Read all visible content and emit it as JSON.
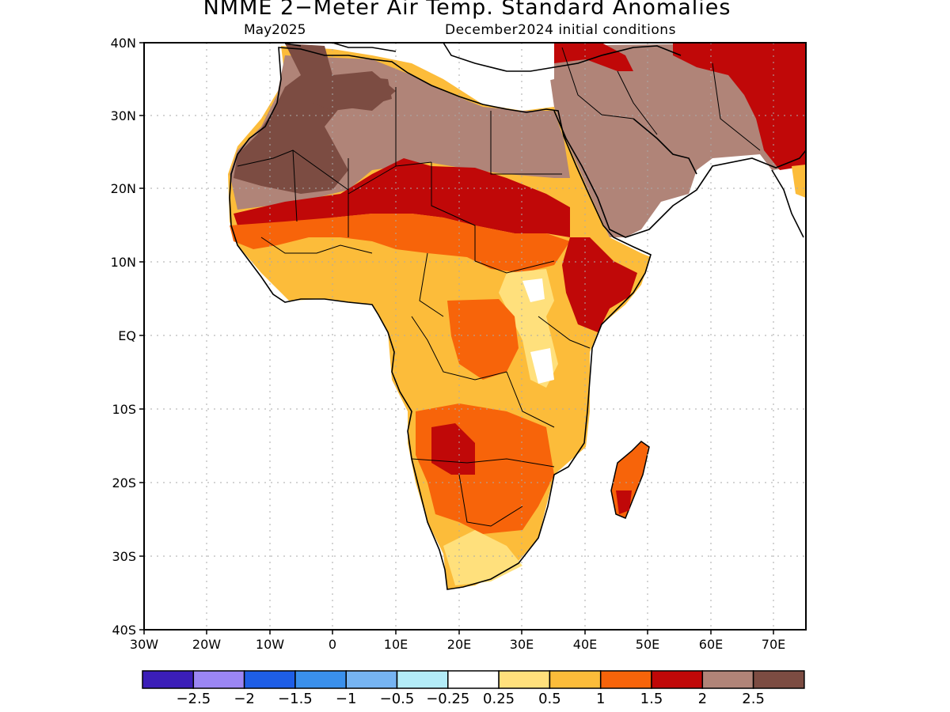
{
  "title": "NMME 2−Meter Air Temp. Standard Anomalies",
  "subtitle_left": "May2025",
  "subtitle_right": "December2024 initial conditions",
  "map": {
    "lat_labels": [
      "40N",
      "30N",
      "20N",
      "10N",
      "EQ",
      "10S",
      "20S",
      "30S",
      "40S"
    ],
    "lon_labels": [
      "30W",
      "20W",
      "10W",
      "0",
      "10E",
      "20E",
      "30E",
      "40E",
      "50E",
      "60E",
      "70E"
    ],
    "lat_range": [
      -40,
      40
    ],
    "lon_range": [
      -30,
      75
    ],
    "grid": "dotted",
    "ocean_color": "#ffffff",
    "coastline_color": "#000000"
  },
  "colorbar": {
    "colors": [
      "#3b1eb8",
      "#9b86f4",
      "#1e5ee6",
      "#3a90ec",
      "#76b4f2",
      "#b3ecf8",
      "#ffffff",
      "#ffe07c",
      "#fcbc3a",
      "#f7640a",
      "#c00808",
      "#b08478",
      "#7c4c42"
    ],
    "labels": [
      "−2.5",
      "−2",
      "−1.5",
      "−1",
      "−0.5",
      "−0.25",
      "0.25",
      "0.5",
      "1",
      "1.5",
      "2",
      "2.5"
    ]
  }
}
